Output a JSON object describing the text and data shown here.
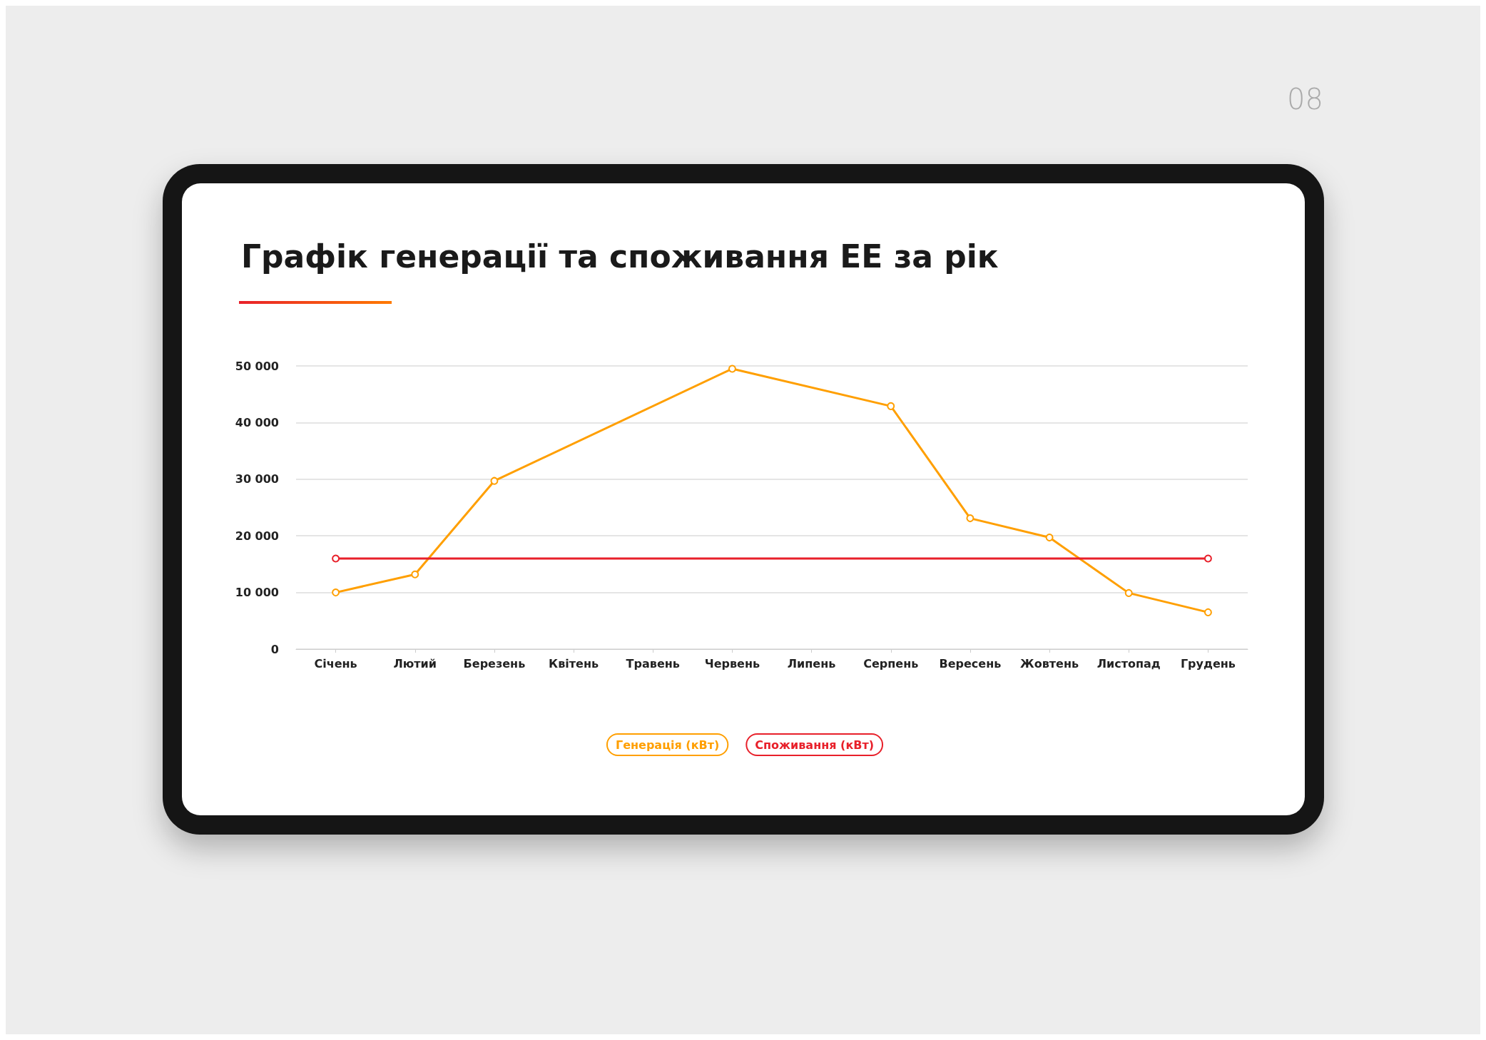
{
  "chart_data": {
    "type": "line",
    "title": "Графік генерації та споживання ЕЕ за рік",
    "annotations": [
      "08"
    ],
    "categories": [
      "Січень",
      "Лютий",
      "Березень",
      "Квітень",
      "Травень",
      "Червень",
      "Липень",
      "Серпень",
      "Вересень",
      "Жовтень",
      "Листопад",
      "Грудень"
    ],
    "series": [
      {
        "name": "Генерація (кВт)",
        "color": "#ff9f00",
        "x": [
          "Січень",
          "Лютий",
          "Березень",
          "Червень",
          "Серпень",
          "Вересень",
          "Жовтень",
          "Листопад",
          "Грудень"
        ],
        "values": [
          10000,
          13200,
          29700,
          49500,
          42900,
          23100,
          19700,
          9900,
          6500
        ]
      },
      {
        "name": "Споживання (кВт)",
        "color": "#e8202a",
        "x": [
          "Січень",
          "Грудень"
        ],
        "values": [
          16000,
          16000
        ]
      }
    ],
    "ylim": [
      0,
      50000
    ],
    "yticks": [
      {
        "value": 0,
        "label": "0"
      },
      {
        "value": 10000,
        "label": "10 000"
      },
      {
        "value": 20000,
        "label": "20 000"
      },
      {
        "value": 30000,
        "label": "30 000"
      },
      {
        "value": 40000,
        "label": "40 000"
      },
      {
        "value": 50000,
        "label": "50 000"
      }
    ],
    "grid": "y",
    "legend": "bottom",
    "marker": "circle",
    "line_style": "solid"
  }
}
